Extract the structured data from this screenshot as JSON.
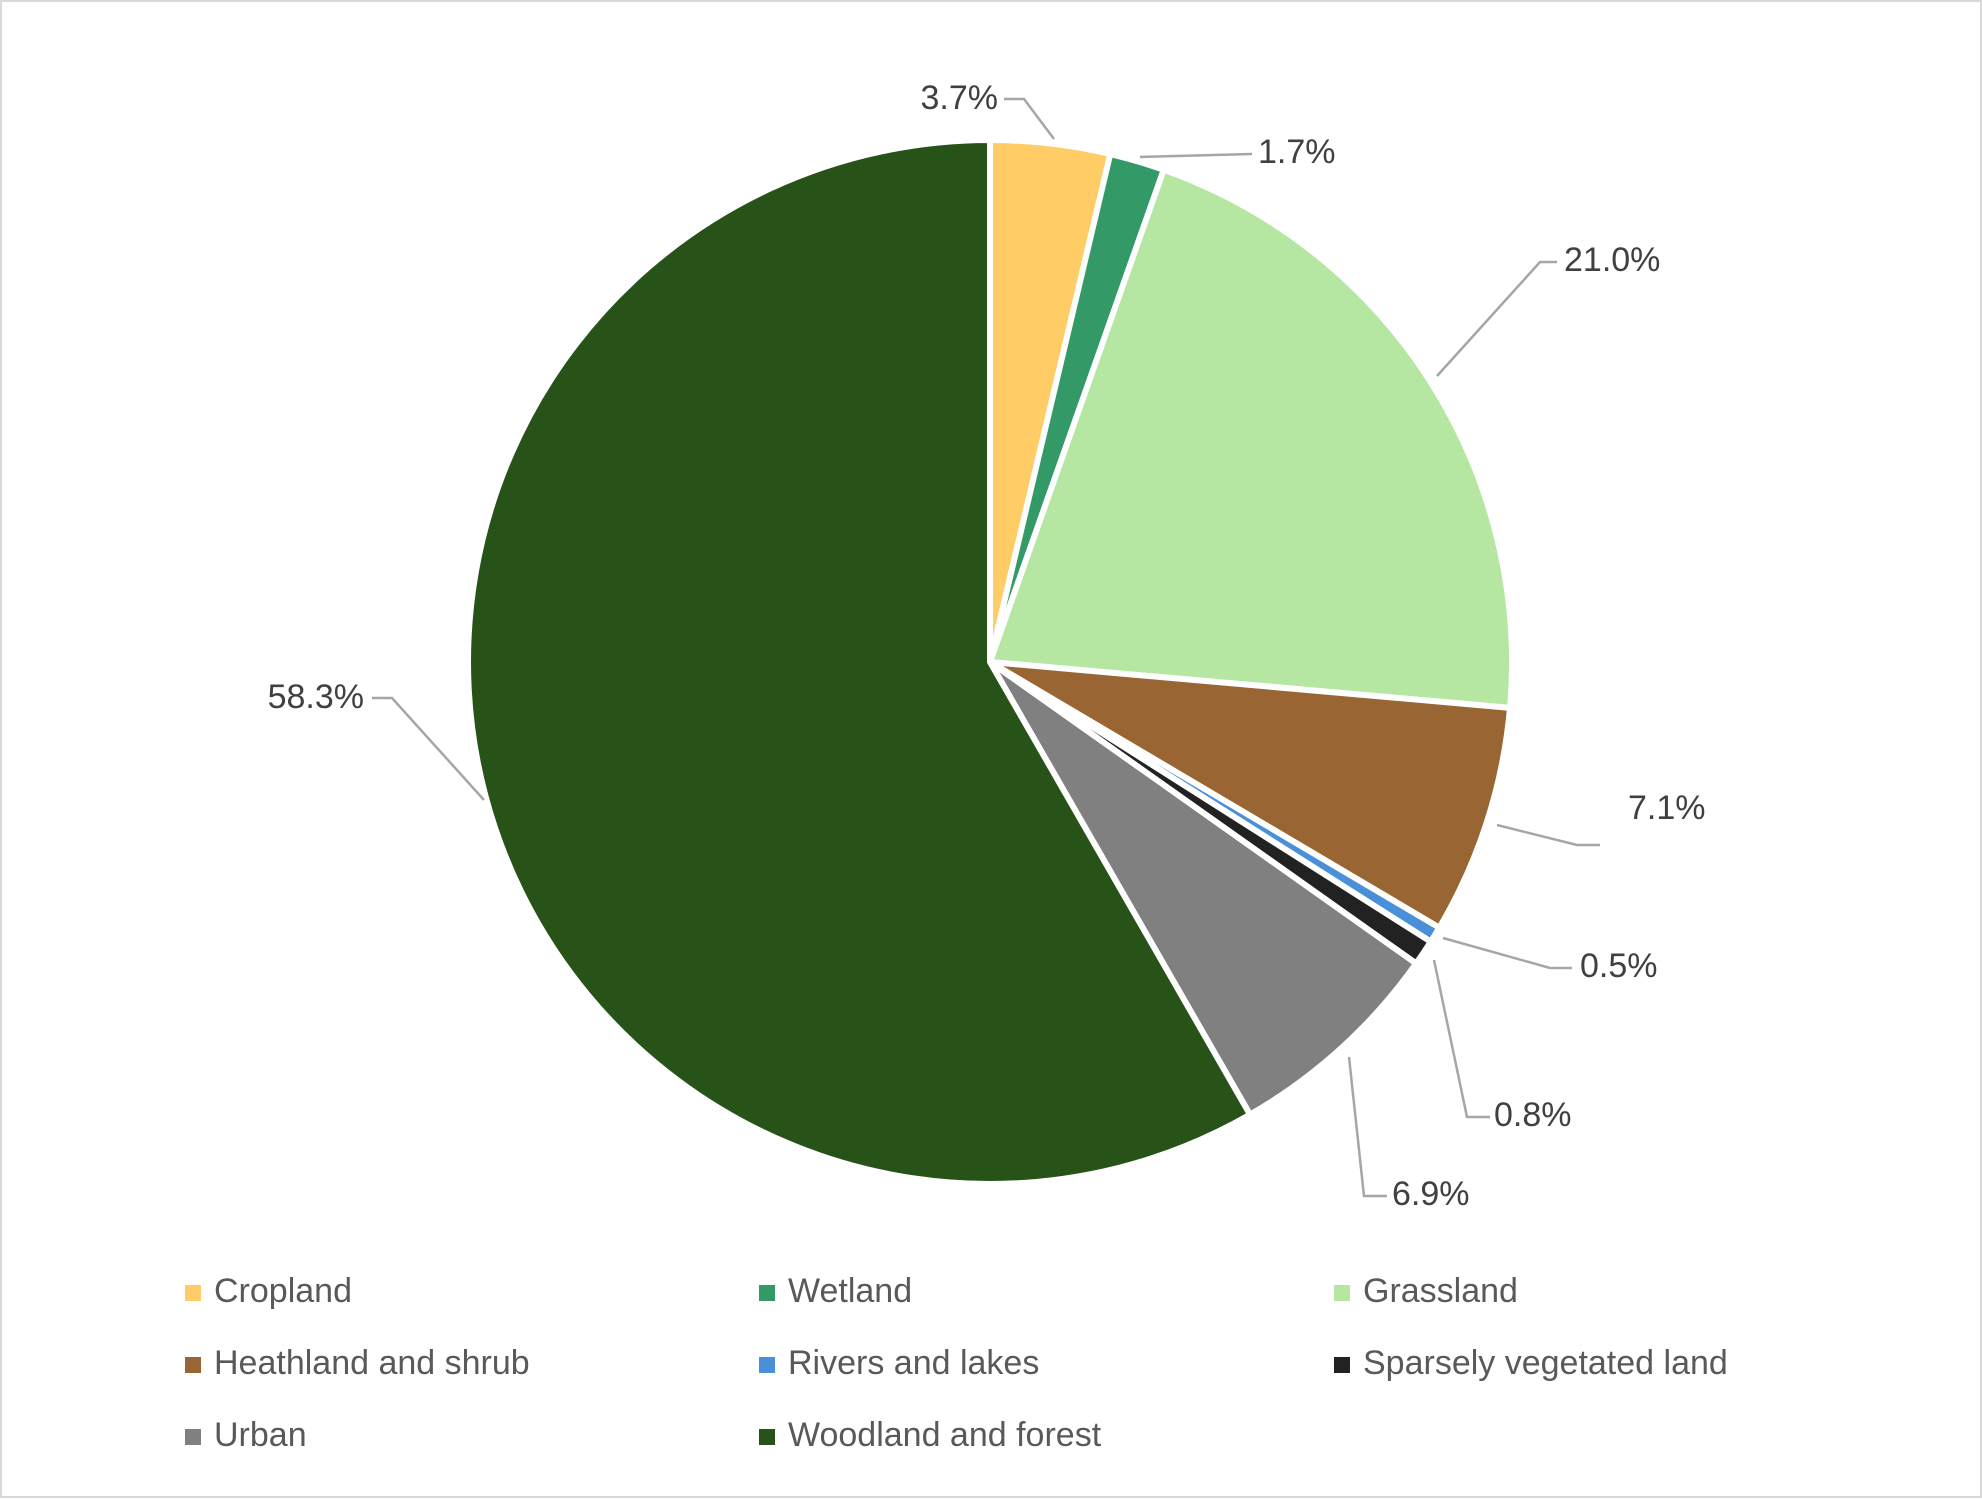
{
  "chart_data": {
    "type": "pie",
    "start_angle": "12 o'clock",
    "direction": "clockwise",
    "legend_placement": "bottom",
    "slices": [
      {
        "name": "Cropland",
        "value": 3.7,
        "label": "3.7%",
        "color": "#FFCC66"
      },
      {
        "name": "Wetland",
        "value": 1.7,
        "label": "1.7%",
        "color": "#339966"
      },
      {
        "name": "Grassland",
        "value": 21.0,
        "label": "21.0%",
        "color": "#B5E6A2"
      },
      {
        "name": "Heathland and shrub",
        "value": 7.1,
        "label": "7.1%",
        "color": "#996633"
      },
      {
        "name": "Rivers and lakes",
        "value": 0.5,
        "label": "0.5%",
        "color": "#4A90D9"
      },
      {
        "name": "Sparsely vegetated land",
        "value": 0.8,
        "label": "0.8%",
        "color": "#222222"
      },
      {
        "name": "Urban",
        "value": 6.9,
        "label": "6.9%",
        "color": "#808080"
      },
      {
        "name": "Woodland and forest",
        "value": 58.3,
        "label": "58.3%",
        "color": "#285318"
      }
    ]
  }
}
